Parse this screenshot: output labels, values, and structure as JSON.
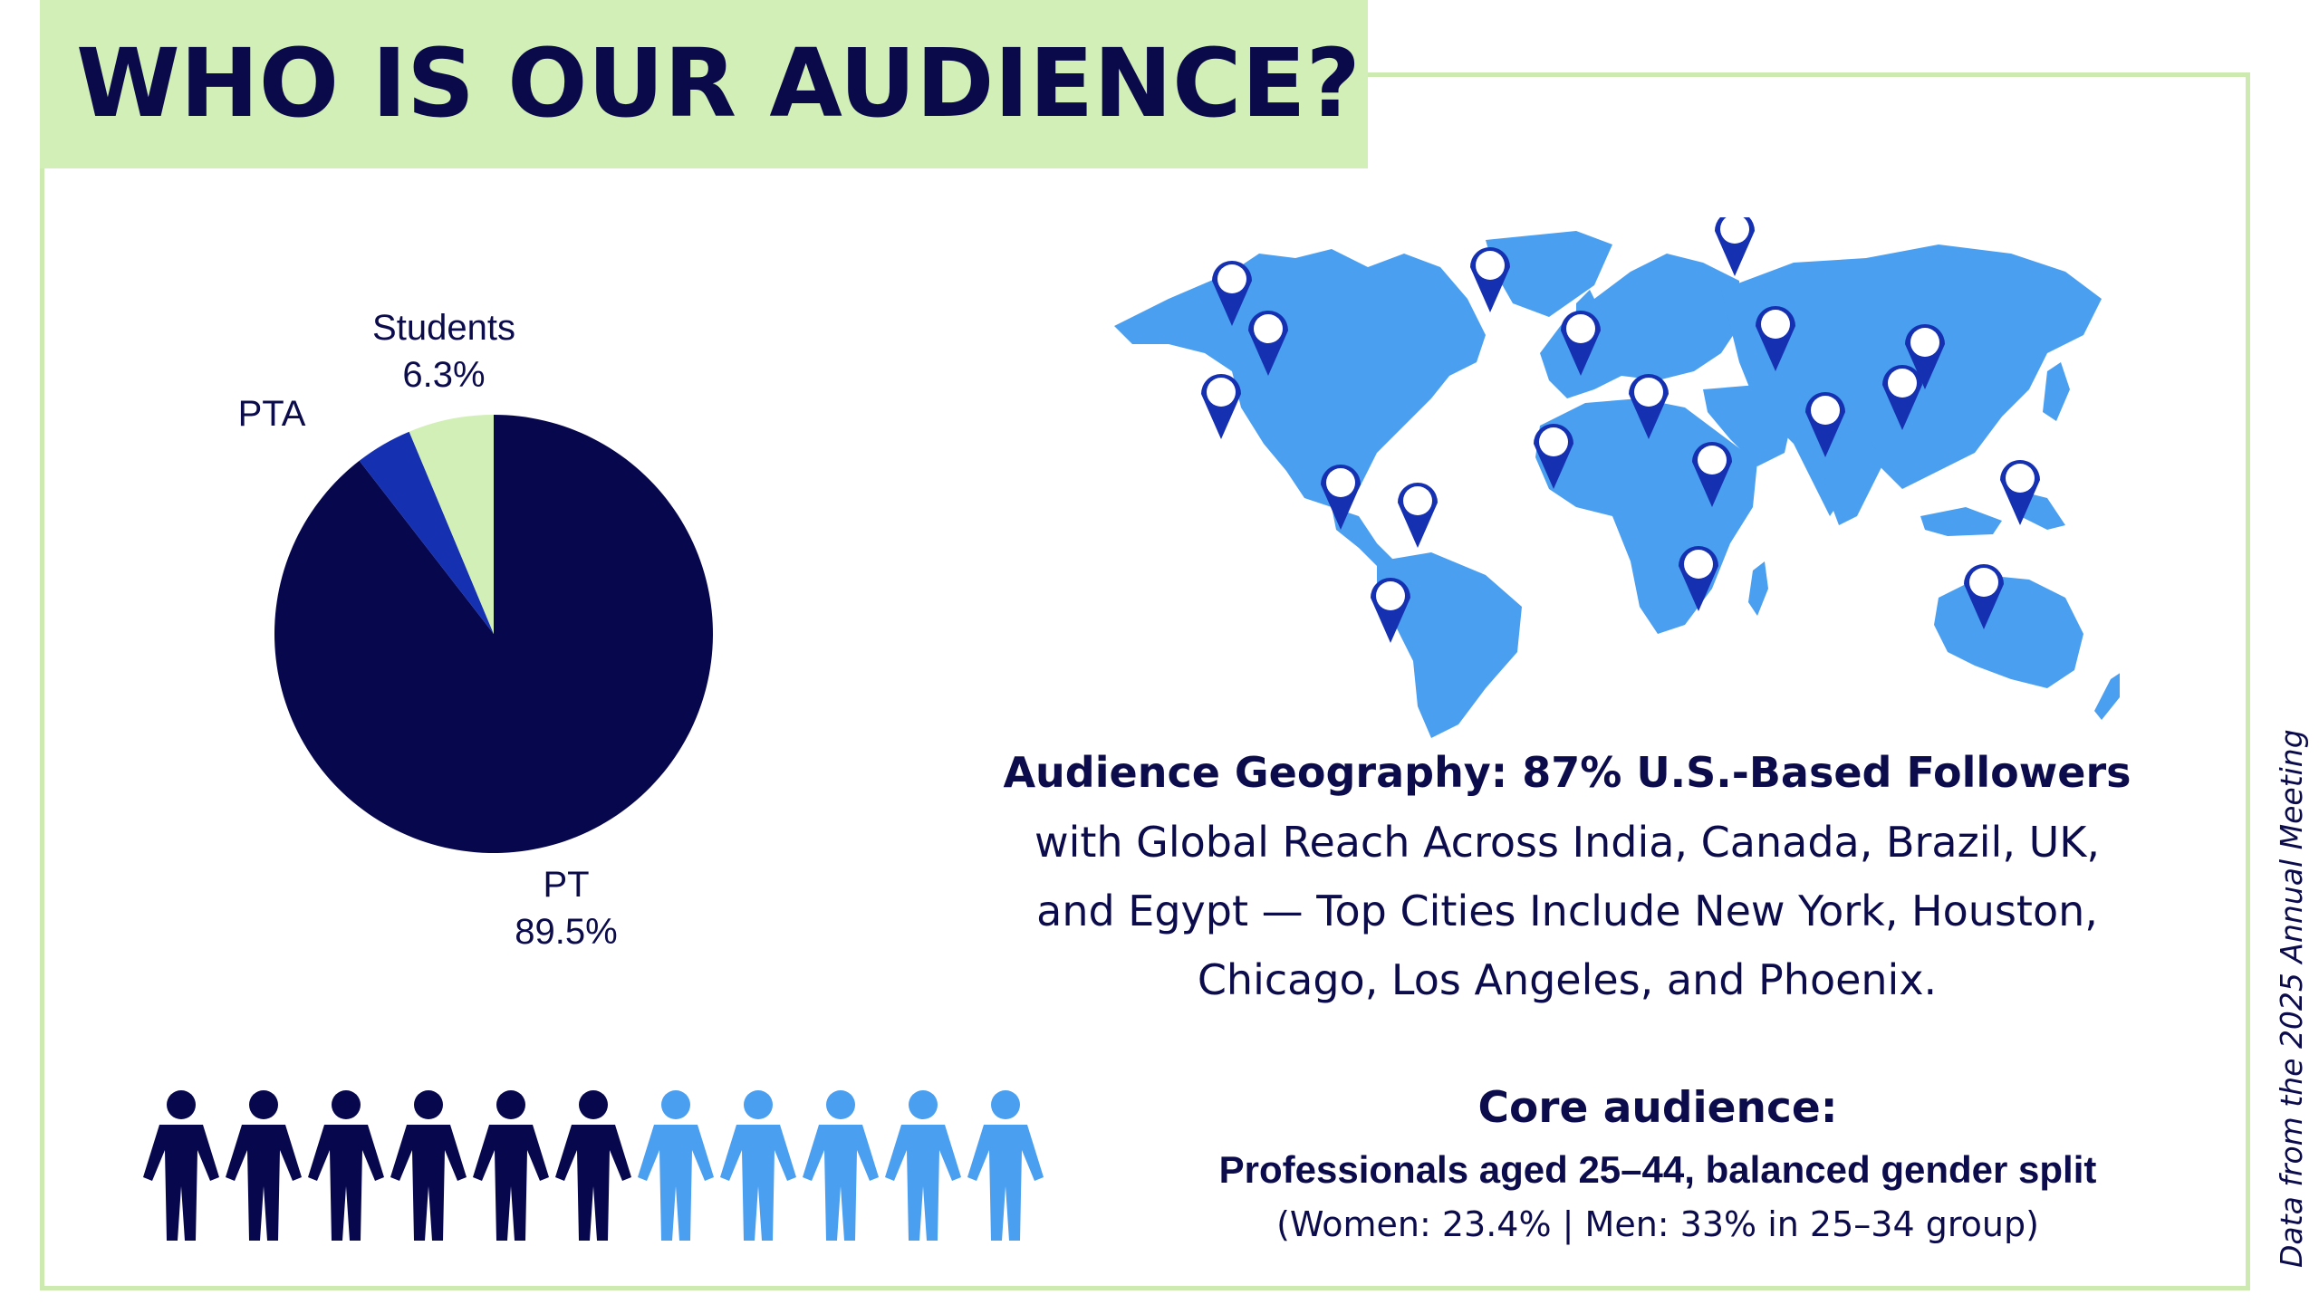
{
  "title": "WHO IS OUR AUDIENCE?",
  "colors": {
    "navy": "#07074d",
    "royal_blue": "#1530b0",
    "light_green": "#d2efb7",
    "sky_blue": "#4a9ff0",
    "frame_green": "#cdeab0",
    "text_navy": "#0c0c4d"
  },
  "chart_data": {
    "type": "pie",
    "slices": [
      {
        "label": "PT",
        "value": 89.5,
        "value_label": "89.5%",
        "color": "#07074d"
      },
      {
        "label": "PTA",
        "value": 4.2,
        "value_label": "",
        "color": "#1530b0"
      },
      {
        "label": "Students",
        "value": 6.3,
        "value_label": "6.3%",
        "color": "#d2efb7"
      }
    ]
  },
  "geography": {
    "headline": "Audience Geography: 87% U.S.-Based Followers",
    "lines": [
      "with Global Reach Across India, Canada, Brazil, UK,",
      "and Egypt — Top Cities Include New York, Houston,",
      "Chicago, Los Angeles, and Phoenix."
    ],
    "map_icon": "world-map-with-location-pins"
  },
  "core_audience": {
    "title": "Core audience:",
    "subtitle": "Professionals aged 25–44, balanced gender split",
    "note": "(Women: 23.4% | Men: 33% in 25–34 group)"
  },
  "people": {
    "total": 11,
    "highlighted": 6,
    "icon": "person-icon"
  },
  "source_note": "Data from the 2025 Annual Meeting"
}
